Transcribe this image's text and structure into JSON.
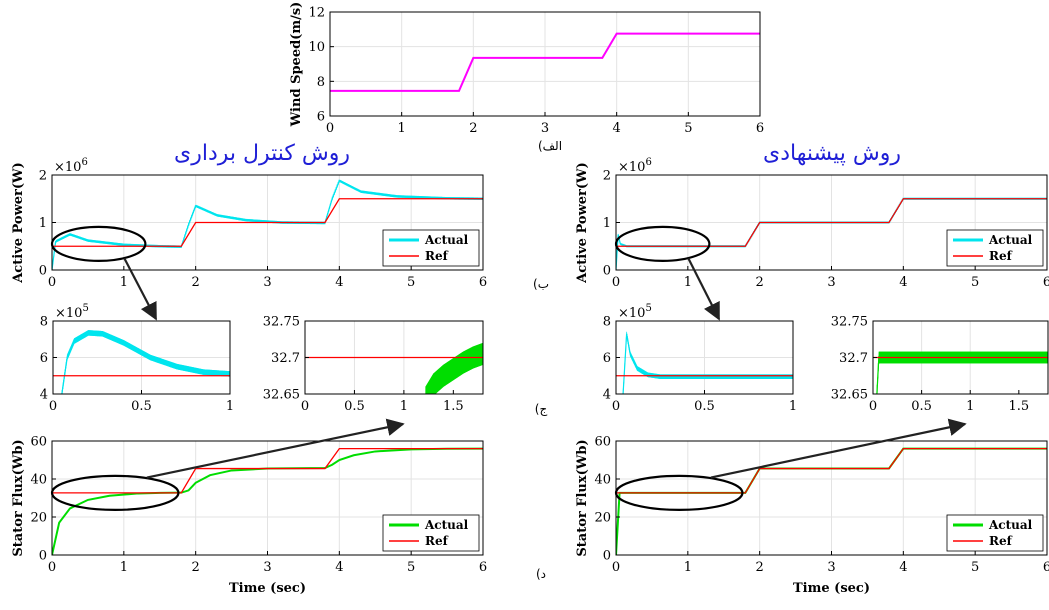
{
  "headings": {
    "left": "روش کنترل برداری",
    "right": "روش پیشنهادی"
  },
  "panel_letters": {
    "a": "(الف",
    "b": "(ب",
    "c": "(ج",
    "d": "(د"
  },
  "colors": {
    "wind": "#ff00ff",
    "actual_power": "#00e5ee",
    "actual_flux": "#00dd00",
    "ref": "#ff0000",
    "heading": "#1f1fd6",
    "arrow": "#222222"
  },
  "chart_data": [
    {
      "id": "wind",
      "type": "line",
      "ylabel": "Wind Speed(m/s)",
      "xlabel": "",
      "xlim": [
        0,
        6
      ],
      "ylim": [
        6,
        12
      ],
      "xticks": [
        0,
        1,
        2,
        3,
        4,
        5,
        6
      ],
      "yticks": [
        6,
        8,
        10,
        12
      ],
      "series": [
        {
          "color": "#ff00ff",
          "x": [
            0,
            1.8,
            2.0,
            3.8,
            4.0,
            6.0
          ],
          "y": [
            7.45,
            7.45,
            9.35,
            9.35,
            10.75,
            10.75
          ]
        }
      ]
    },
    {
      "id": "power_vector",
      "type": "line",
      "ylabel": "Active Power(W)",
      "exponent": "×10",
      "exponent_power": "6",
      "xlim": [
        0,
        6
      ],
      "ylim": [
        0,
        2
      ],
      "xticks": [
        0,
        1,
        2,
        3,
        4,
        5,
        6
      ],
      "yticks": [
        0,
        1,
        2
      ],
      "legend": {
        "placement": "bottom-right",
        "entries": [
          "Actual",
          "Ref"
        ]
      },
      "series": [
        {
          "name": "Actual",
          "color": "#00e5ee",
          "band": 0.05,
          "x": [
            0,
            0.05,
            0.25,
            0.5,
            1.0,
            1.5,
            1.8,
            1.9,
            2.0,
            2.3,
            2.7,
            3.2,
            3.8,
            3.9,
            4.0,
            4.3,
            4.8,
            5.5,
            6.0
          ],
          "y": [
            0,
            0.6,
            0.75,
            0.62,
            0.53,
            0.5,
            0.49,
            0.95,
            1.35,
            1.15,
            1.05,
            1.0,
            0.99,
            1.5,
            1.88,
            1.65,
            1.55,
            1.51,
            1.5
          ]
        },
        {
          "name": "Ref",
          "color": "#ff0000",
          "x": [
            0,
            1.8,
            2.0,
            3.8,
            4.0,
            6.0
          ],
          "y": [
            0.5,
            0.5,
            1.0,
            1.0,
            1.5,
            1.5
          ]
        }
      ]
    },
    {
      "id": "power_proposed",
      "type": "line",
      "ylabel": "Active Power(W)",
      "exponent": "×10",
      "exponent_power": "6",
      "xlim": [
        0,
        6
      ],
      "ylim": [
        0,
        2
      ],
      "xticks": [
        0,
        1,
        2,
        3,
        4,
        5,
        6
      ],
      "yticks": [
        0,
        1,
        2
      ],
      "legend": {
        "placement": "bottom-right",
        "entries": [
          "Actual",
          "Ref"
        ]
      },
      "series": [
        {
          "name": "Actual",
          "color": "#00e5ee",
          "band": 0.04,
          "x": [
            0,
            0.03,
            0.06,
            0.15,
            0.4,
            1.8,
            2.0,
            3.8,
            4.0,
            6.0
          ],
          "y": [
            0,
            0.75,
            0.55,
            0.5,
            0.5,
            0.5,
            1.0,
            1.0,
            1.5,
            1.5
          ]
        },
        {
          "name": "Ref",
          "color": "#ff0000",
          "x": [
            0,
            1.8,
            2.0,
            3.8,
            4.0,
            6.0
          ],
          "y": [
            0.5,
            0.5,
            1.0,
            1.0,
            1.5,
            1.5
          ]
        }
      ]
    },
    {
      "id": "zoom_power_vector",
      "type": "line",
      "exponent": "×10",
      "exponent_power": "5",
      "xlim": [
        0,
        1
      ],
      "ylim": [
        4,
        8
      ],
      "xticks": [
        0,
        0.5,
        1
      ],
      "xticklabels": [
        "0",
        "0.5",
        "1"
      ],
      "yticks": [
        4,
        6,
        8
      ],
      "series": [
        {
          "name": "Actual",
          "color": "#00e5ee",
          "band": 0.3,
          "x": [
            0.05,
            0.08,
            0.12,
            0.2,
            0.28,
            0.4,
            0.55,
            0.7,
            0.85,
            1.0
          ],
          "y": [
            4.0,
            6.0,
            6.9,
            7.35,
            7.3,
            6.8,
            6.0,
            5.5,
            5.2,
            5.1
          ]
        },
        {
          "name": "Ref",
          "color": "#ff0000",
          "x": [
            0,
            1
          ],
          "y": [
            5,
            5
          ]
        }
      ]
    },
    {
      "id": "zoom_flux_vector",
      "type": "line",
      "xlim": [
        0,
        1.8
      ],
      "ylim": [
        32.65,
        32.75
      ],
      "xticks": [
        0,
        0.5,
        1,
        1.5
      ],
      "xticklabels": [
        "0",
        "0.5",
        "1",
        "1.5"
      ],
      "yticks": [
        32.65,
        32.7,
        32.75
      ],
      "yticklabels": [
        "32.65",
        "32.7",
        "32.75"
      ],
      "series": [
        {
          "name": "Actual",
          "color": "#00dd00",
          "band": 0.03,
          "x": [
            1.22,
            1.3,
            1.4,
            1.5,
            1.6,
            1.7,
            1.8
          ],
          "y": [
            32.645,
            32.663,
            32.675,
            32.684,
            32.693,
            32.7,
            32.705
          ]
        },
        {
          "name": "Ref",
          "color": "#ff0000",
          "x": [
            0,
            1.8
          ],
          "y": [
            32.7,
            32.7
          ]
        }
      ]
    },
    {
      "id": "zoom_power_proposed",
      "type": "line",
      "exponent": "×10",
      "exponent_power": "5",
      "xlim": [
        0,
        1
      ],
      "ylim": [
        4,
        8
      ],
      "xticks": [
        0,
        0.5,
        1
      ],
      "xticklabels": [
        "0",
        "0.5",
        "1"
      ],
      "yticks": [
        4,
        6,
        8
      ],
      "series": [
        {
          "name": "Actual",
          "color": "#00e5ee",
          "band": 0.25,
          "x": [
            0.04,
            0.06,
            0.08,
            0.12,
            0.18,
            0.25,
            0.4,
            1.0
          ],
          "y": [
            4.0,
            7.3,
            6.2,
            5.4,
            5.05,
            4.95,
            4.95,
            4.95
          ]
        },
        {
          "name": "Ref",
          "color": "#ff0000",
          "x": [
            0,
            1
          ],
          "y": [
            5,
            5
          ]
        }
      ]
    },
    {
      "id": "zoom_flux_proposed",
      "type": "line",
      "xlim": [
        0,
        1.8
      ],
      "ylim": [
        32.65,
        32.75
      ],
      "xticks": [
        0,
        0.5,
        1,
        1.5
      ],
      "xticklabels": [
        "0",
        "0.5",
        "1",
        "1.5"
      ],
      "yticks": [
        32.65,
        32.7,
        32.75
      ],
      "yticklabels": [
        "32.65",
        "32.7",
        "32.75"
      ],
      "series": [
        {
          "name": "Actual",
          "color": "#00dd00",
          "band": 0.016,
          "x": [
            0.04,
            0.06,
            1.8
          ],
          "y": [
            32.65,
            32.7,
            32.7
          ]
        },
        {
          "name": "Ref",
          "color": "#ff0000",
          "x": [
            0,
            1.8
          ],
          "y": [
            32.7,
            32.7
          ]
        }
      ]
    },
    {
      "id": "flux_vector",
      "type": "line",
      "ylabel": "Stator Flux(Wb)",
      "xlabel": "Time (sec)",
      "xlim": [
        0,
        6
      ],
      "ylim": [
        0,
        60
      ],
      "xticks": [
        0,
        1,
        2,
        3,
        4,
        5,
        6
      ],
      "yticks": [
        0,
        20,
        40,
        60
      ],
      "legend": {
        "placement": "bottom-right",
        "entries": [
          "Actual",
          "Ref"
        ]
      },
      "series": [
        {
          "name": "Actual",
          "color": "#00dd00",
          "x": [
            0,
            0.1,
            0.25,
            0.5,
            0.8,
            1.2,
            1.5,
            1.8,
            1.9,
            2.0,
            2.2,
            2.5,
            3.0,
            3.8,
            3.9,
            4.0,
            4.2,
            4.5,
            5.0,
            5.5,
            6.0
          ],
          "y": [
            0,
            17,
            24.5,
            29,
            31.2,
            32.4,
            32.7,
            32.8,
            34,
            38,
            42,
            44.5,
            45.5,
            45.8,
            47.5,
            50,
            52.5,
            54.5,
            55.6,
            55.9,
            56
          ]
        },
        {
          "name": "Ref",
          "color": "#ff0000",
          "x": [
            0,
            1.8,
            2.0,
            3.8,
            4.0,
            6.0
          ],
          "y": [
            32.7,
            32.7,
            45.5,
            45.5,
            56,
            56
          ]
        }
      ]
    },
    {
      "id": "flux_proposed",
      "type": "line",
      "ylabel": "Stator Flux(Wb)",
      "xlabel": "Time (sec)",
      "xlim": [
        0,
        6
      ],
      "ylim": [
        0,
        60
      ],
      "xticks": [
        0,
        1,
        2,
        3,
        4,
        5,
        6
      ],
      "yticks": [
        0,
        20,
        40,
        60
      ],
      "legend": {
        "placement": "bottom-right",
        "entries": [
          "Actual",
          "Ref"
        ]
      },
      "series": [
        {
          "name": "Actual",
          "color": "#00dd00",
          "x": [
            0,
            0.05,
            0.08,
            1.8,
            2.0,
            3.8,
            4.0,
            6.0
          ],
          "y": [
            0,
            32.7,
            32.7,
            32.7,
            45.5,
            45.5,
            56,
            56
          ]
        },
        {
          "name": "Ref",
          "color": "#ff0000",
          "x": [
            0,
            1.8,
            2.0,
            3.8,
            4.0,
            6.0
          ],
          "y": [
            32.7,
            32.7,
            45.5,
            45.5,
            56,
            56
          ]
        }
      ]
    }
  ]
}
